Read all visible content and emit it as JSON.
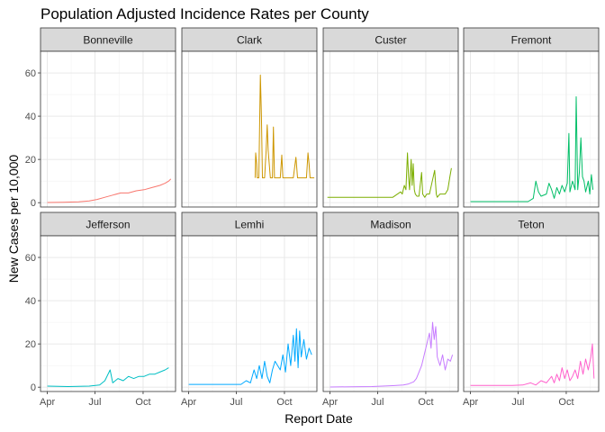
{
  "chart_data": {
    "type": "line",
    "title": "Population Adjusted Incidence Rates per County",
    "xlabel": "Report Date",
    "ylabel": "New Cases per 10,000",
    "ylim": [
      -2,
      70
    ],
    "y_ticks": [
      0,
      20,
      40,
      60
    ],
    "x_ticks": [
      "Apr",
      "Jul",
      "Oct"
    ],
    "x_tick_days": [
      0,
      91,
      183
    ],
    "xlim_days": [
      -13,
      245
    ],
    "x_units": "days after Apr 1",
    "facet_layout": {
      "rows": 2,
      "cols": 4
    },
    "grid": true,
    "panel_background": "#ffffff",
    "strip_background": "#d9d9d9",
    "series": [
      {
        "name": "Bonneville",
        "color": "#F8766D",
        "points": [
          [
            0,
            0.1
          ],
          [
            30,
            0.2
          ],
          [
            60,
            0.4
          ],
          [
            80,
            0.8
          ],
          [
            95,
            1.5
          ],
          [
            110,
            2.5
          ],
          [
            125,
            3.5
          ],
          [
            140,
            4.5
          ],
          [
            155,
            4.5
          ],
          [
            170,
            5.5
          ],
          [
            185,
            6
          ],
          [
            200,
            7
          ],
          [
            215,
            8
          ],
          [
            225,
            9
          ],
          [
            232,
            10
          ],
          [
            236,
            11
          ]
        ]
      },
      {
        "name": "Clark",
        "color": "#CD9600",
        "points": [
          [
            127,
            11.5
          ],
          [
            128,
            23
          ],
          [
            130,
            18
          ],
          [
            131,
            11.5
          ],
          [
            134,
            11.5
          ],
          [
            137,
            59
          ],
          [
            139,
            40
          ],
          [
            141,
            11.5
          ],
          [
            145,
            11.5
          ],
          [
            148,
            24
          ],
          [
            150,
            36
          ],
          [
            152,
            24
          ],
          [
            156,
            11.5
          ],
          [
            160,
            11.5
          ],
          [
            162,
            35
          ],
          [
            164,
            11.5
          ],
          [
            175,
            11.5
          ],
          [
            178,
            22
          ],
          [
            180,
            11.5
          ],
          [
            200,
            11.5
          ],
          [
            205,
            21
          ],
          [
            208,
            11.5
          ],
          [
            225,
            11.5
          ],
          [
            228,
            23
          ],
          [
            230,
            18
          ],
          [
            232,
            11.5
          ],
          [
            240,
            11.5
          ]
        ]
      },
      {
        "name": "Custer",
        "color": "#7CAE00",
        "points": [
          [
            -5,
            2.5
          ],
          [
            40,
            2.5
          ],
          [
            90,
            2.5
          ],
          [
            120,
            2.5
          ],
          [
            135,
            5
          ],
          [
            138,
            4
          ],
          [
            142,
            8
          ],
          [
            145,
            6
          ],
          [
            148,
            23
          ],
          [
            150,
            12
          ],
          [
            152,
            6
          ],
          [
            155,
            20
          ],
          [
            157,
            8
          ],
          [
            159,
            18
          ],
          [
            161,
            6
          ],
          [
            163,
            4
          ],
          [
            166,
            3
          ],
          [
            170,
            3
          ],
          [
            175,
            14
          ],
          [
            177,
            4
          ],
          [
            181,
            2.5
          ],
          [
            185,
            4
          ],
          [
            190,
            4
          ],
          [
            200,
            15
          ],
          [
            203,
            4
          ],
          [
            205,
            2.5
          ],
          [
            210,
            4
          ],
          [
            220,
            4
          ],
          [
            225,
            6
          ],
          [
            229,
            12
          ],
          [
            232,
            16
          ]
        ]
      },
      {
        "name": "Fremont",
        "color": "#00BE67",
        "points": [
          [
            0,
            0.5
          ],
          [
            50,
            0.5
          ],
          [
            90,
            0.5
          ],
          [
            110,
            0.5
          ],
          [
            120,
            2
          ],
          [
            125,
            10
          ],
          [
            130,
            5
          ],
          [
            135,
            3
          ],
          [
            145,
            4
          ],
          [
            150,
            9
          ],
          [
            155,
            6
          ],
          [
            160,
            2
          ],
          [
            165,
            7
          ],
          [
            170,
            4
          ],
          [
            175,
            8
          ],
          [
            180,
            5
          ],
          [
            185,
            9
          ],
          [
            188,
            32
          ],
          [
            190,
            5
          ],
          [
            195,
            10
          ],
          [
            200,
            6
          ],
          [
            202,
            49
          ],
          [
            205,
            6
          ],
          [
            208,
            14
          ],
          [
            211,
            30
          ],
          [
            214,
            12
          ],
          [
            217,
            10
          ],
          [
            220,
            5
          ],
          [
            225,
            10
          ],
          [
            228,
            4
          ],
          [
            231,
            13
          ],
          [
            234,
            6
          ]
        ]
      },
      {
        "name": "Jefferson",
        "color": "#00BFC4",
        "points": [
          [
            0,
            0.5
          ],
          [
            40,
            0.3
          ],
          [
            80,
            0.5
          ],
          [
            100,
            1
          ],
          [
            110,
            3
          ],
          [
            120,
            8
          ],
          [
            125,
            2
          ],
          [
            135,
            4
          ],
          [
            145,
            3
          ],
          [
            155,
            5
          ],
          [
            165,
            4
          ],
          [
            175,
            5
          ],
          [
            185,
            5
          ],
          [
            195,
            6
          ],
          [
            205,
            6
          ],
          [
            215,
            7
          ],
          [
            225,
            8
          ],
          [
            232,
            9
          ]
        ]
      },
      {
        "name": "Lemhi",
        "color": "#00A9FF",
        "points": [
          [
            0,
            1.3
          ],
          [
            40,
            1.3
          ],
          [
            90,
            1.3
          ],
          [
            100,
            1.3
          ],
          [
            110,
            3
          ],
          [
            118,
            2
          ],
          [
            125,
            8
          ],
          [
            130,
            4
          ],
          [
            135,
            10
          ],
          [
            140,
            4
          ],
          [
            145,
            12
          ],
          [
            150,
            5
          ],
          [
            155,
            2
          ],
          [
            160,
            8
          ],
          [
            165,
            12
          ],
          [
            170,
            10
          ],
          [
            175,
            8
          ],
          [
            180,
            15
          ],
          [
            185,
            7
          ],
          [
            190,
            20
          ],
          [
            195,
            10
          ],
          [
            200,
            24
          ],
          [
            203,
            12
          ],
          [
            206,
            27
          ],
          [
            209,
            9
          ],
          [
            212,
            26
          ],
          [
            215,
            14
          ],
          [
            220,
            22
          ],
          [
            225,
            13
          ],
          [
            230,
            18
          ],
          [
            235,
            15
          ]
        ]
      },
      {
        "name": "Madison",
        "color": "#C77CFF",
        "points": [
          [
            0,
            0.1
          ],
          [
            40,
            0.2
          ],
          [
            80,
            0.3
          ],
          [
            100,
            0.5
          ],
          [
            120,
            0.7
          ],
          [
            140,
            1
          ],
          [
            150,
            1.5
          ],
          [
            160,
            2.5
          ],
          [
            165,
            4
          ],
          [
            170,
            7
          ],
          [
            175,
            10
          ],
          [
            180,
            15
          ],
          [
            185,
            20
          ],
          [
            190,
            25
          ],
          [
            193,
            18
          ],
          [
            196,
            30
          ],
          [
            199,
            22
          ],
          [
            202,
            28
          ],
          [
            205,
            14
          ],
          [
            210,
            10
          ],
          [
            215,
            15
          ],
          [
            220,
            8
          ],
          [
            225,
            13
          ],
          [
            230,
            12
          ],
          [
            234,
            15
          ]
        ]
      },
      {
        "name": "Teton",
        "color": "#FF61CC",
        "points": [
          [
            0,
            0.8
          ],
          [
            40,
            0.8
          ],
          [
            80,
            0.8
          ],
          [
            100,
            1
          ],
          [
            115,
            2
          ],
          [
            125,
            1
          ],
          [
            135,
            3
          ],
          [
            145,
            2
          ],
          [
            155,
            5
          ],
          [
            160,
            2
          ],
          [
            165,
            6
          ],
          [
            170,
            3
          ],
          [
            175,
            9
          ],
          [
            180,
            4
          ],
          [
            185,
            8
          ],
          [
            190,
            3
          ],
          [
            195,
            5
          ],
          [
            200,
            8
          ],
          [
            205,
            4
          ],
          [
            210,
            12
          ],
          [
            215,
            6
          ],
          [
            220,
            13
          ],
          [
            225,
            8
          ],
          [
            230,
            14
          ],
          [
            233,
            20
          ],
          [
            236,
            4
          ]
        ]
      }
    ]
  }
}
